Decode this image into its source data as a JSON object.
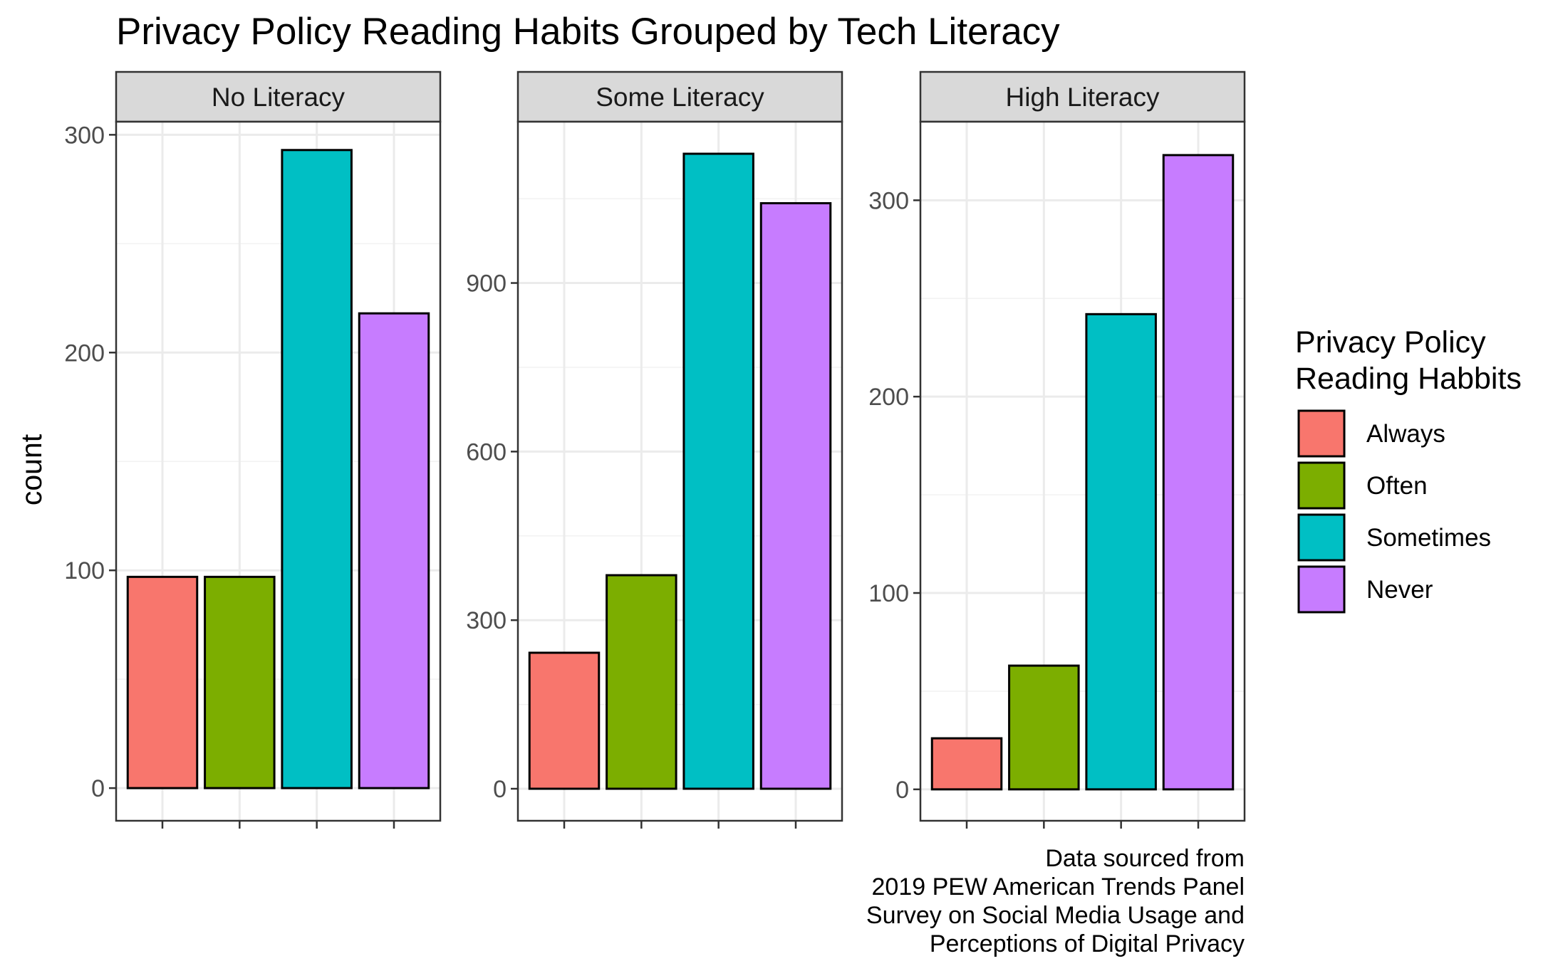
{
  "chart_data": {
    "type": "bar",
    "title": "Privacy Policy Reading Habits Grouped by Tech Literacy",
    "ylabel": "count",
    "xlabel": "",
    "grid": true,
    "legend": {
      "title_lines": [
        "Privacy Policy",
        "Reading Habbits"
      ],
      "position": "right",
      "items": [
        {
          "label": "Always",
          "color": "#F8766D"
        },
        {
          "label": "Often",
          "color": "#7CAE00"
        },
        {
          "label": "Sometimes",
          "color": "#00BFC4"
        },
        {
          "label": "Never",
          "color": "#C77CFF"
        }
      ]
    },
    "categories": [
      "Always",
      "Often",
      "Sometimes",
      "Never"
    ],
    "panels": [
      {
        "label": "No Literacy",
        "values": [
          97,
          97,
          293,
          218
        ],
        "ylim": [
          -15,
          306
        ],
        "yticks": [
          0,
          100,
          200,
          300
        ]
      },
      {
        "label": "Some Literacy",
        "values": [
          242,
          380,
          1130,
          1042
        ],
        "ylim": [
          -57,
          1187
        ],
        "yticks": [
          0,
          300,
          600,
          900
        ]
      },
      {
        "label": "High Literacy",
        "values": [
          26,
          63,
          242,
          323
        ],
        "ylim": [
          -16,
          340
        ],
        "yticks": [
          0,
          100,
          200,
          300
        ]
      }
    ],
    "caption_lines": [
      "Data sourced from",
      "2019 PEW American Trends Panel",
      "Survey on Social Media Usage and",
      "Perceptions of Digital Privacy"
    ]
  }
}
